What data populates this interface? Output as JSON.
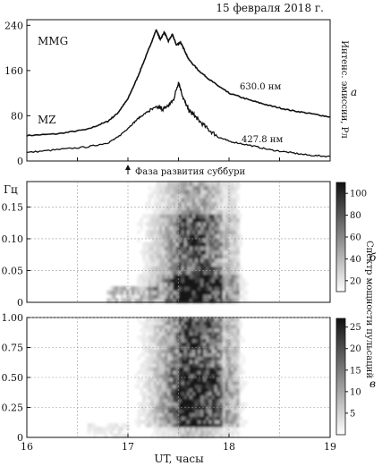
{
  "header": {
    "date": "15 февраля 2018 г."
  },
  "panel_labels": {
    "a": "а",
    "b": "б",
    "c": "в"
  },
  "chart_data": [
    {
      "type": "line",
      "panel": "а",
      "ylabel": "Интенс. эмиссии, Рл",
      "ylim": [
        0,
        250
      ],
      "yticks": [
        0,
        80,
        160,
        240
      ],
      "xlim": [
        16,
        19
      ],
      "grid": false,
      "annotation": "Фаза развития суббури",
      "annotation_x": 17.0,
      "series": [
        {
          "name": "630.0 нм",
          "station": "MMG",
          "x": [
            16.0,
            16.3,
            16.6,
            16.8,
            16.9,
            17.0,
            17.1,
            17.2,
            17.28,
            17.32,
            17.36,
            17.4,
            17.44,
            17.48,
            17.52,
            17.56,
            17.6,
            17.7,
            17.8,
            17.9,
            18.0,
            18.2,
            18.4,
            18.6,
            18.8,
            19.0
          ],
          "y": [
            45,
            48,
            56,
            70,
            85,
            110,
            150,
            195,
            232,
            215,
            228,
            212,
            224,
            205,
            210,
            196,
            180,
            160,
            145,
            132,
            120,
            108,
            98,
            90,
            84,
            78
          ]
        },
        {
          "name": "427.8 нм",
          "station": "MZ",
          "x": [
            16.0,
            16.3,
            16.6,
            16.8,
            16.9,
            17.0,
            17.1,
            17.2,
            17.3,
            17.35,
            17.4,
            17.45,
            17.5,
            17.55,
            17.6,
            17.65,
            17.7,
            17.8,
            17.9,
            18.0,
            18.2,
            18.4,
            18.6,
            18.8,
            19.0
          ],
          "y": [
            15,
            20,
            25,
            32,
            42,
            58,
            75,
            88,
            95,
            92,
            98,
            108,
            140,
            110,
            90,
            82,
            72,
            55,
            42,
            35,
            28,
            20,
            15,
            10,
            8
          ]
        }
      ]
    },
    {
      "type": "heatmap",
      "panel": "б",
      "ylabel": "Гц",
      "ylim": [
        0,
        0.19
      ],
      "yticks": [
        0,
        0.05,
        0.1,
        0.15
      ],
      "ytick_labels": [
        "0",
        "0.05",
        "0.10",
        "0.15"
      ],
      "xlim": [
        16,
        19
      ],
      "colorbar_ticks": [
        20,
        40,
        60,
        80,
        100
      ],
      "colorbar_range": [
        10,
        110
      ],
      "grid": true
    },
    {
      "type": "heatmap",
      "panel": "в",
      "ylim": [
        0,
        1.0
      ],
      "yticks": [
        0,
        0.25,
        0.5,
        0.75,
        1.0
      ],
      "ytick_labels": [
        "0",
        "0.25",
        "0.50",
        "0.75",
        "1.00"
      ],
      "xlim": [
        16,
        19
      ],
      "xticks": [
        16,
        17,
        18,
        19
      ],
      "xlabel": "UT, часы",
      "colorbar_ticks": [
        5,
        10,
        15,
        20,
        25
      ],
      "colorbar_range": [
        0,
        27
      ],
      "grid": true
    }
  ],
  "shared_colorbar_label": "Спектр мощности пульсаций"
}
